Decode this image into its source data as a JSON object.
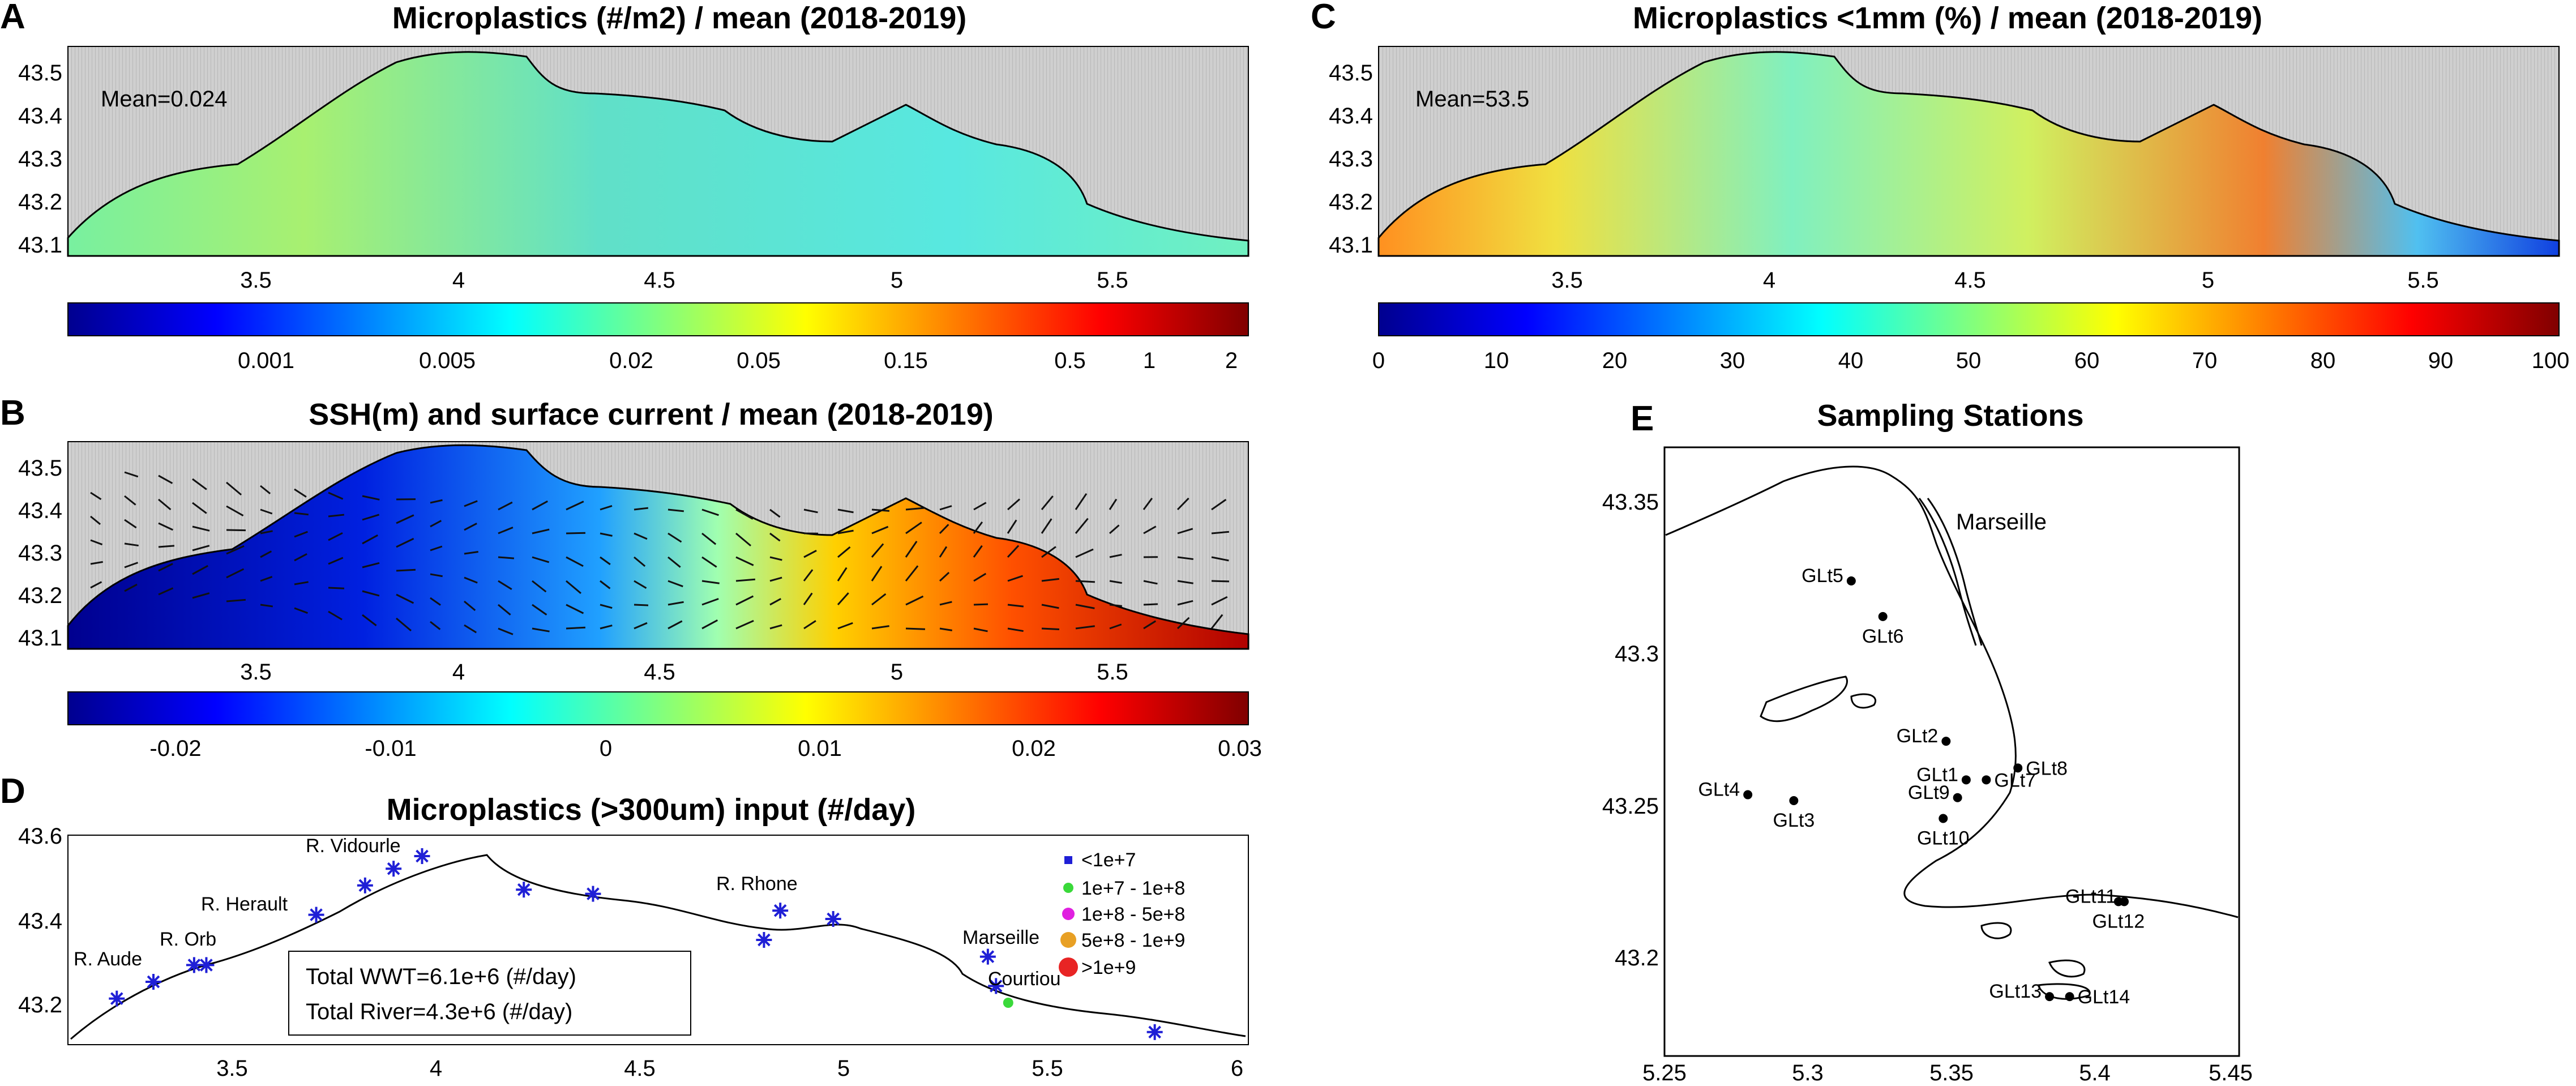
{
  "chart_data": [
    {
      "id": "A",
      "type": "heatmap",
      "panel_label": "A",
      "title": "Microplastics (#/m2) / mean (2018-2019)",
      "annotation": "Mean=0.024",
      "xlim": [
        3.1,
        5.8
      ],
      "ylim": [
        43.08,
        43.56
      ],
      "xticks": [
        "3.5",
        "4",
        "4.5",
        "5",
        "5.5"
      ],
      "yticks": [
        "43.5",
        "43.4",
        "43.3",
        "43.2",
        "43.1"
      ],
      "colorbar": {
        "scale": "log",
        "ticks": [
          "0.001",
          "0.005",
          "0.02",
          "0.05",
          "0.15",
          "0.5",
          "1",
          "2"
        ],
        "colormap": "jet"
      },
      "mean_value": 0.024
    },
    {
      "id": "B",
      "type": "heatmap",
      "panel_label": "B",
      "title": "SSH(m) and surface current / mean (2018-2019)",
      "xlim": [
        3.1,
        5.8
      ],
      "ylim": [
        43.08,
        43.56
      ],
      "xticks": [
        "3.5",
        "4",
        "4.5",
        "5",
        "5.5"
      ],
      "yticks": [
        "43.5",
        "43.4",
        "43.3",
        "43.2",
        "43.1"
      ],
      "colorbar": {
        "scale": "linear",
        "range": [
          -0.025,
          0.03
        ],
        "ticks": [
          "-0.02",
          "-0.01",
          "0",
          "0.01",
          "0.02",
          "0.03"
        ],
        "colormap": "jet"
      },
      "overlay": "surface current vectors"
    },
    {
      "id": "C",
      "type": "heatmap",
      "panel_label": "C",
      "title": "Microplastics <1mm (%) / mean (2018-2019)",
      "annotation": "Mean=53.5",
      "xlim": [
        3.1,
        5.8
      ],
      "ylim": [
        43.08,
        43.56
      ],
      "xticks": [
        "3.5",
        "4",
        "4.5",
        "5",
        "5.5"
      ],
      "yticks": [
        "43.5",
        "43.4",
        "43.3",
        "43.2",
        "43.1"
      ],
      "colorbar": {
        "scale": "linear",
        "range": [
          0,
          100
        ],
        "ticks": [
          "0",
          "10",
          "20",
          "30",
          "40",
          "50",
          "60",
          "70",
          "80",
          "90",
          "100"
        ],
        "colormap": "jet"
      },
      "mean_value": 53.5
    },
    {
      "id": "D",
      "type": "scatter",
      "panel_label": "D",
      "title": "Microplastics (>300um) input (#/day)",
      "xlim": [
        3.1,
        6.0
      ],
      "ylim": [
        43.1,
        43.6
      ],
      "xticks": [
        "3.5",
        "4",
        "4.5",
        "5",
        "5.5",
        "6"
      ],
      "yticks": [
        "43.6",
        "43.4",
        "43.2"
      ],
      "xtick_values": [
        3.5,
        4,
        4.5,
        5,
        5.5,
        6
      ],
      "ytick_values": [
        43.6,
        43.4,
        43.2
      ],
      "legend": [
        {
          "label": "<1e+7",
          "color": "#1f1fd6",
          "shape": "square"
        },
        {
          "label": "1e+7 - 1e+8",
          "color": "#3ad93a",
          "shape": "dot"
        },
        {
          "label": "1e+8 - 5e+8",
          "color": "#e020e0",
          "shape": "dot"
        },
        {
          "label": "5e+8 - 1e+9",
          "color": "#e8a024",
          "shape": "dot"
        },
        {
          "label": ">1e+9",
          "color": "#e82424",
          "shape": "dot"
        }
      ],
      "totals": [
        "Total WWT=6.1e+6 (#/day)",
        "Total River=4.3e+6 (#/day)"
      ],
      "source_labels": [
        {
          "name": "R. Aude",
          "x": 3.22,
          "y": 43.26
        },
        {
          "name": "R. Orb",
          "x": 3.3,
          "y": 43.31
        },
        {
          "name": "R. Herault",
          "x": 3.48,
          "y": 43.44
        },
        {
          "name": "R. Vidourle",
          "x": 3.85,
          "y": 43.58
        },
        {
          "name": "R. Rhone",
          "x": 4.85,
          "y": 43.43
        },
        {
          "name": "Marseille",
          "x": 5.35,
          "y": 43.33
        },
        {
          "name": "Courtiou",
          "x": 5.45,
          "y": 43.22
        }
      ],
      "points": [
        {
          "x": 3.22,
          "y": 43.21,
          "class": "<1e+7"
        },
        {
          "x": 3.31,
          "y": 43.25,
          "class": "<1e+7"
        },
        {
          "x": 3.41,
          "y": 43.29,
          "class": "<1e+7"
        },
        {
          "x": 3.44,
          "y": 43.29,
          "class": "<1e+7"
        },
        {
          "x": 3.71,
          "y": 43.41,
          "class": "<1e+7"
        },
        {
          "x": 3.83,
          "y": 43.48,
          "class": "<1e+7"
        },
        {
          "x": 3.9,
          "y": 43.52,
          "class": "<1e+7"
        },
        {
          "x": 3.97,
          "y": 43.55,
          "class": "<1e+7"
        },
        {
          "x": 4.22,
          "y": 43.47,
          "class": "<1e+7"
        },
        {
          "x": 4.39,
          "y": 43.46,
          "class": "<1e+7"
        },
        {
          "x": 4.81,
          "y": 43.35,
          "class": "<1e+7"
        },
        {
          "x": 4.85,
          "y": 43.42,
          "class": "<1e+7"
        },
        {
          "x": 4.98,
          "y": 43.4,
          "class": "<1e+7"
        },
        {
          "x": 5.36,
          "y": 43.31,
          "class": "<1e+7"
        },
        {
          "x": 5.38,
          "y": 43.24,
          "class": "<1e+7"
        },
        {
          "x": 5.41,
          "y": 43.2,
          "class": "1e+7 - 1e+8"
        },
        {
          "x": 5.77,
          "y": 43.13,
          "class": "<1e+7"
        }
      ]
    },
    {
      "id": "E",
      "type": "scatter",
      "panel_label": "E",
      "title": "Sampling Stations",
      "place_label": "Marseille",
      "xlim": [
        5.25,
        5.45
      ],
      "ylim": [
        43.16,
        43.365
      ],
      "xticks": [
        "5.25",
        "5.3",
        "5.35",
        "5.4",
        "5.45"
      ],
      "yticks": [
        "43.35",
        "43.3",
        "43.25",
        "43.2"
      ],
      "xtick_values": [
        5.25,
        5.3,
        5.35,
        5.4,
        5.45
      ],
      "ytick_values": [
        43.35,
        43.3,
        43.25,
        43.2
      ],
      "stations": [
        {
          "name": "GLt5",
          "x": 5.315,
          "y": 43.32,
          "label_pos": "left"
        },
        {
          "name": "GLt6",
          "x": 5.326,
          "y": 43.308,
          "label_pos": "below"
        },
        {
          "name": "GLt2",
          "x": 5.348,
          "y": 43.266,
          "label_pos": "left"
        },
        {
          "name": "GLt8",
          "x": 5.373,
          "y": 43.257,
          "label_pos": "right"
        },
        {
          "name": "GLt1",
          "x": 5.355,
          "y": 43.253,
          "label_pos": "left"
        },
        {
          "name": "GLt7",
          "x": 5.362,
          "y": 43.253,
          "label_pos": "right"
        },
        {
          "name": "GLt9",
          "x": 5.352,
          "y": 43.247,
          "label_pos": "left"
        },
        {
          "name": "GLt4",
          "x": 5.279,
          "y": 43.248,
          "label_pos": "left"
        },
        {
          "name": "GLt3",
          "x": 5.295,
          "y": 43.246,
          "label_pos": "below"
        },
        {
          "name": "GLt10",
          "x": 5.347,
          "y": 43.24,
          "label_pos": "below"
        },
        {
          "name": "GLt11",
          "x": 5.41,
          "y": 43.212,
          "label_pos": "left"
        },
        {
          "name": "GLt12",
          "x": 5.408,
          "y": 43.212,
          "label_pos": "below"
        },
        {
          "name": "GLt13",
          "x": 5.384,
          "y": 43.18,
          "label_pos": "left"
        },
        {
          "name": "GLt14",
          "x": 5.391,
          "y": 43.18,
          "label_pos": "right"
        }
      ]
    }
  ]
}
